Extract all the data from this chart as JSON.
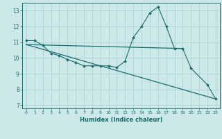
{
  "xlabel": "Humidex (Indice chaleur)",
  "bg_color": "#cce8e8",
  "grid_color": "#aad4d4",
  "line_color": "#1a6b6b",
  "xlim": [
    -0.5,
    23.5
  ],
  "ylim": [
    6.8,
    13.5
  ],
  "yticks": [
    7,
    8,
    9,
    10,
    11,
    12,
    13
  ],
  "xticks": [
    0,
    1,
    2,
    3,
    4,
    5,
    6,
    7,
    8,
    9,
    10,
    11,
    12,
    13,
    14,
    15,
    16,
    17,
    18,
    19,
    20,
    21,
    22,
    23
  ],
  "line1_x": [
    0,
    1,
    2,
    3,
    4,
    5,
    6,
    7,
    8,
    9,
    10,
    11,
    12,
    13,
    14,
    15,
    16,
    17,
    18,
    19,
    20,
    22,
    23
  ],
  "line1_y": [
    11.1,
    11.1,
    10.8,
    10.3,
    10.15,
    9.9,
    9.72,
    9.5,
    9.5,
    9.5,
    9.5,
    9.4,
    9.8,
    11.3,
    12.0,
    12.85,
    13.25,
    12.0,
    10.6,
    10.6,
    9.35,
    8.3,
    7.4
  ],
  "line2_x": [
    0,
    19
  ],
  "line2_y": [
    10.85,
    10.6
  ],
  "line3_x": [
    0,
    23
  ],
  "line3_y": [
    10.85,
    7.4
  ]
}
